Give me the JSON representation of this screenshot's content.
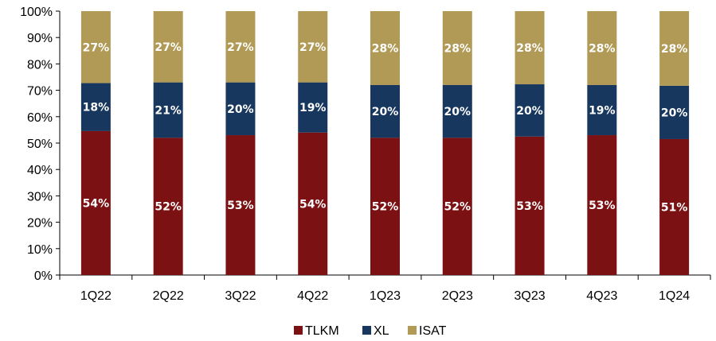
{
  "chart_data": {
    "type": "bar",
    "stacked": true,
    "percent": true,
    "categories": [
      "1Q22",
      "2Q22",
      "3Q22",
      "4Q22",
      "1Q23",
      "2Q23",
      "3Q23",
      "4Q23",
      "1Q24"
    ],
    "series": [
      {
        "name": "TLKM",
        "color": "#7B1113",
        "values": [
          54,
          52,
          53,
          54,
          52,
          52,
          53,
          53,
          51
        ],
        "labels": [
          "54%",
          "52%",
          "53%",
          "54%",
          "52%",
          "52%",
          "53%",
          "53%",
          "51%"
        ]
      },
      {
        "name": "XL",
        "color": "#17375E",
        "values": [
          18,
          21,
          20,
          19,
          20,
          20,
          20,
          19,
          20
        ],
        "labels": [
          "18%",
          "21%",
          "20%",
          "19%",
          "20%",
          "20%",
          "20%",
          "19%",
          "20%"
        ]
      },
      {
        "name": "ISAT",
        "color": "#B09A56",
        "values": [
          27,
          27,
          27,
          27,
          28,
          28,
          28,
          28,
          28
        ],
        "labels": [
          "27%",
          "27%",
          "27%",
          "27%",
          "28%",
          "28%",
          "28%",
          "28%",
          "28%"
        ]
      }
    ],
    "ylim": [
      0,
      100
    ],
    "yticks": [
      "0%",
      "10%",
      "20%",
      "30%",
      "40%",
      "50%",
      "60%",
      "70%",
      "80%",
      "90%",
      "100%"
    ],
    "grid": false,
    "legend": "bottom-center"
  }
}
